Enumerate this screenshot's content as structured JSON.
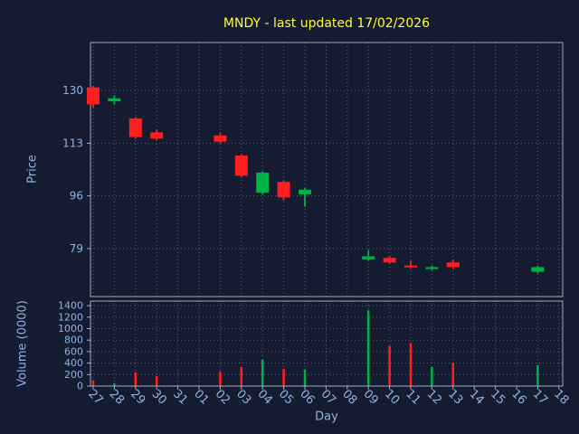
{
  "title": "MNDY - last updated 17/02/2026",
  "colors": {
    "background": "#151b30",
    "title": "#ffff33",
    "label": "#8fb3e3",
    "grid": "#9aa6bb",
    "spine": "#b9c4d4",
    "up": "#00b244",
    "down": "#ff1f1f"
  },
  "chart_data": {
    "type": "candlestick",
    "title": "MNDY - last updated 17/02/2026",
    "xlabel": "Day",
    "grid": "dotted",
    "x_ticks": [
      "27",
      "28",
      "29",
      "30",
      "31",
      "01",
      "02",
      "03",
      "04",
      "05",
      "06",
      "07",
      "08",
      "09",
      "10",
      "11",
      "12",
      "13",
      "14",
      "15",
      "16",
      "17",
      "18"
    ],
    "price_axis": {
      "label": "Price",
      "ticks": [
        79,
        96,
        113,
        130
      ],
      "ylim": [
        63.5,
        145.5
      ]
    },
    "volume_axis": {
      "label": "Volume (0000)",
      "ticks": [
        0,
        200,
        400,
        600,
        800,
        1000,
        1200,
        1400
      ],
      "ylim": [
        0,
        1480
      ]
    },
    "ohlcv": [
      {
        "day": "27",
        "open": 131.0,
        "high": 131.5,
        "low": 124.5,
        "close": 125.5,
        "volume": 100
      },
      {
        "day": "28",
        "open": 126.5,
        "high": 128.5,
        "low": 125.5,
        "close": 127.5,
        "volume": 50
      },
      {
        "day": "29",
        "open": 121.0,
        "high": 121.5,
        "low": 114.5,
        "close": 115.0,
        "volume": 240
      },
      {
        "day": "30",
        "open": 116.5,
        "high": 117.5,
        "low": 114.0,
        "close": 114.5,
        "volume": 175
      },
      {
        "day": "02",
        "open": 115.5,
        "high": 116.5,
        "low": 113.0,
        "close": 113.5,
        "volume": 255
      },
      {
        "day": "03",
        "open": 109.0,
        "high": 109.5,
        "low": 102.0,
        "close": 102.5,
        "volume": 330
      },
      {
        "day": "04",
        "open": 97.0,
        "high": 104.0,
        "low": 96.5,
        "close": 103.5,
        "volume": 460
      },
      {
        "day": "05",
        "open": 100.5,
        "high": 101.0,
        "low": 94.5,
        "close": 95.5,
        "volume": 300
      },
      {
        "day": "06",
        "open": 96.5,
        "high": 98.5,
        "low": 92.5,
        "close": 98.0,
        "volume": 290
      },
      {
        "day": "09",
        "open": 75.5,
        "high": 78.5,
        "low": 75.0,
        "close": 76.5,
        "volume": 1320
      },
      {
        "day": "10",
        "open": 76.0,
        "high": 76.5,
        "low": 74.0,
        "close": 74.5,
        "volume": 700
      },
      {
        "day": "11",
        "open": 73.5,
        "high": 75.0,
        "low": 72.5,
        "close": 73.0,
        "volume": 750
      },
      {
        "day": "12",
        "open": 72.5,
        "high": 73.5,
        "low": 72.0,
        "close": 73.0,
        "volume": 330
      },
      {
        "day": "13",
        "open": 74.5,
        "high": 75.5,
        "low": 72.5,
        "close": 73.0,
        "volume": 410
      },
      {
        "day": "17",
        "open": 71.5,
        "high": 73.5,
        "low": 71.0,
        "close": 73.0,
        "volume": 365
      }
    ]
  }
}
